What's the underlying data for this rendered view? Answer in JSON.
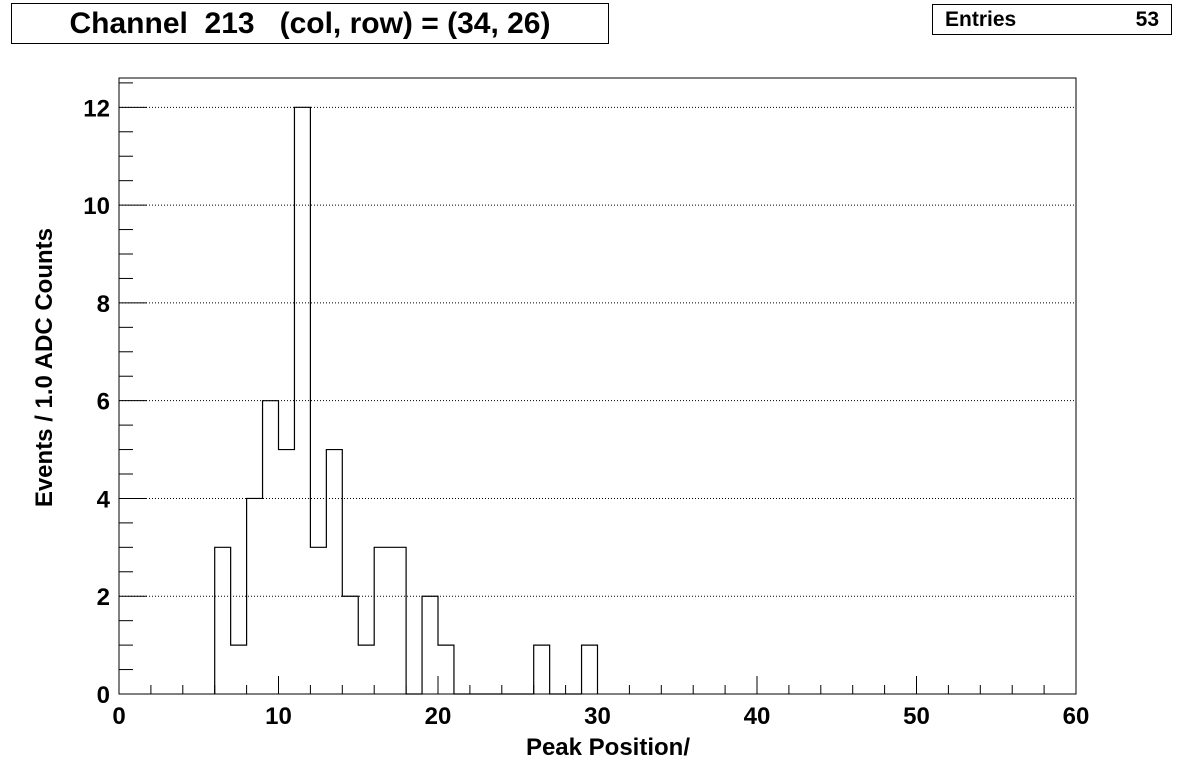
{
  "title": "Channel  213   (col, row) = (34, 26)",
  "stats": {
    "label": "Entries",
    "value": "53"
  },
  "colors": {
    "line": "#000000",
    "background": "#ffffff",
    "grid": "#000000"
  },
  "chart_data": {
    "type": "bar",
    "style": "step-histogram",
    "xlabel": "Peak Position/",
    "ylabel": "Events / 1.0 ADC Counts",
    "xlim": [
      0,
      60
    ],
    "ylim": [
      0,
      12.6
    ],
    "xticks": [
      0,
      10,
      20,
      30,
      40,
      50,
      60
    ],
    "yticks": [
      0,
      2,
      4,
      6,
      8,
      10,
      12
    ],
    "grid": "y-major-dotted",
    "bin_width": 1,
    "bins": [
      {
        "low": 6,
        "count": 3
      },
      {
        "low": 7,
        "count": 1
      },
      {
        "low": 8,
        "count": 4
      },
      {
        "low": 9,
        "count": 6
      },
      {
        "low": 10,
        "count": 5
      },
      {
        "low": 11,
        "count": 12
      },
      {
        "low": 12,
        "count": 3
      },
      {
        "low": 13,
        "count": 5
      },
      {
        "low": 14,
        "count": 2
      },
      {
        "low": 15,
        "count": 1
      },
      {
        "low": 16,
        "count": 3
      },
      {
        "low": 17,
        "count": 3
      },
      {
        "low": 18,
        "count": 0
      },
      {
        "low": 19,
        "count": 2
      },
      {
        "low": 20,
        "count": 1
      },
      {
        "low": 26,
        "count": 1
      },
      {
        "low": 29,
        "count": 1
      }
    ]
  }
}
